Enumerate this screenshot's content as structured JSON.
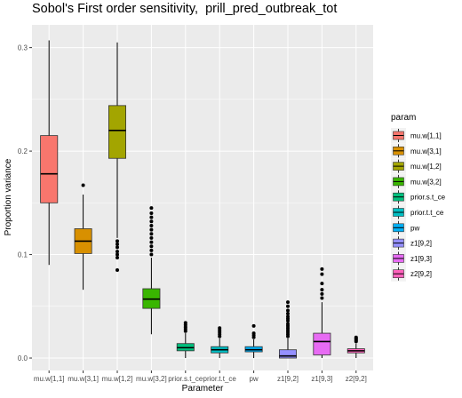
{
  "chart_data": {
    "type": "box",
    "title": "Sobol's First order sensitivity,  prill_pred_outbreak_tot",
    "xlabel": "Parameter",
    "ylabel": "Proportion variance",
    "y_ticks": [
      "0.0",
      "0.1",
      "0.2",
      "0.3"
    ],
    "y_tick_values": [
      0.0,
      0.1,
      0.2,
      0.3
    ],
    "ylim": [
      -0.012,
      0.322
    ],
    "grid": true,
    "legend_position": "right",
    "legend_title": "param",
    "categories": [
      "mu.w[1,1]",
      "mu.w[3,1]",
      "mu.w[1,2]",
      "mu.w[3,2]",
      "prior.s.t_ce",
      "prior.t.t_ce",
      "pw",
      "z1[9,2]",
      "z1[9,3]",
      "z2[9,2]"
    ],
    "series": [
      {
        "name": "mu.w[1,1]",
        "color": "#F8766D",
        "min": 0.09,
        "q1": 0.15,
        "median": 0.178,
        "q3": 0.215,
        "max": 0.307,
        "outliers": []
      },
      {
        "name": "mu.w[3,1]",
        "color": "#D89000",
        "min": 0.066,
        "q1": 0.101,
        "median": 0.113,
        "q3": 0.125,
        "max": 0.158,
        "outliers": [
          0.167
        ]
      },
      {
        "name": "mu.w[1,2]",
        "color": "#A3A500",
        "min": 0.116,
        "q1": 0.193,
        "median": 0.22,
        "q3": 0.244,
        "max": 0.305,
        "outliers": [
          0.113,
          0.11,
          0.107,
          0.103,
          0.1,
          0.097,
          0.085
        ]
      },
      {
        "name": "mu.w[3,2]",
        "color": "#39B600",
        "min": 0.023,
        "q1": 0.048,
        "median": 0.057,
        "q3": 0.067,
        "max": 0.097,
        "outliers": [
          0.1,
          0.104,
          0.108,
          0.112,
          0.116,
          0.12,
          0.124,
          0.128,
          0.132,
          0.136,
          0.14,
          0.145
        ]
      },
      {
        "name": "prior.s.t_ce",
        "color": "#00BF7D",
        "min": 0.0,
        "q1": 0.007,
        "median": 0.01,
        "q3": 0.014,
        "max": 0.024,
        "outliers": [
          0.026,
          0.028,
          0.03,
          0.032,
          0.034
        ]
      },
      {
        "name": "prior.t.t_ce",
        "color": "#00BFC4",
        "min": 0.0,
        "q1": 0.005,
        "median": 0.008,
        "q3": 0.011,
        "max": 0.019,
        "outliers": [
          0.021,
          0.023,
          0.025,
          0.027,
          0.029
        ]
      },
      {
        "name": "pw",
        "color": "#00B0F6",
        "min": 0.0,
        "q1": 0.006,
        "median": 0.008,
        "q3": 0.011,
        "max": 0.018,
        "outliers": [
          0.02,
          0.022,
          0.024,
          0.031
        ]
      },
      {
        "name": "z1[9,2]",
        "color": "#9590FF",
        "min": 0.0,
        "q1": 0.0,
        "median": 0.002,
        "q3": 0.008,
        "max": 0.019,
        "outliers": [
          0.021,
          0.023,
          0.025,
          0.027,
          0.029,
          0.031,
          0.033,
          0.036,
          0.038,
          0.04,
          0.043,
          0.046,
          0.05,
          0.054
        ]
      },
      {
        "name": "z1[9,3]",
        "color": "#E76BF3",
        "min": 0.0,
        "q1": 0.003,
        "median": 0.016,
        "q3": 0.024,
        "max": 0.054,
        "outliers": [
          0.058,
          0.062,
          0.066,
          0.072,
          0.081,
          0.086
        ]
      },
      {
        "name": "z2[9,2]",
        "color": "#FF62BC",
        "min": 0.0,
        "q1": 0.005,
        "median": 0.007,
        "q3": 0.009,
        "max": 0.014,
        "outliers": [
          0.016,
          0.017,
          0.018,
          0.019,
          0.02
        ]
      }
    ]
  }
}
